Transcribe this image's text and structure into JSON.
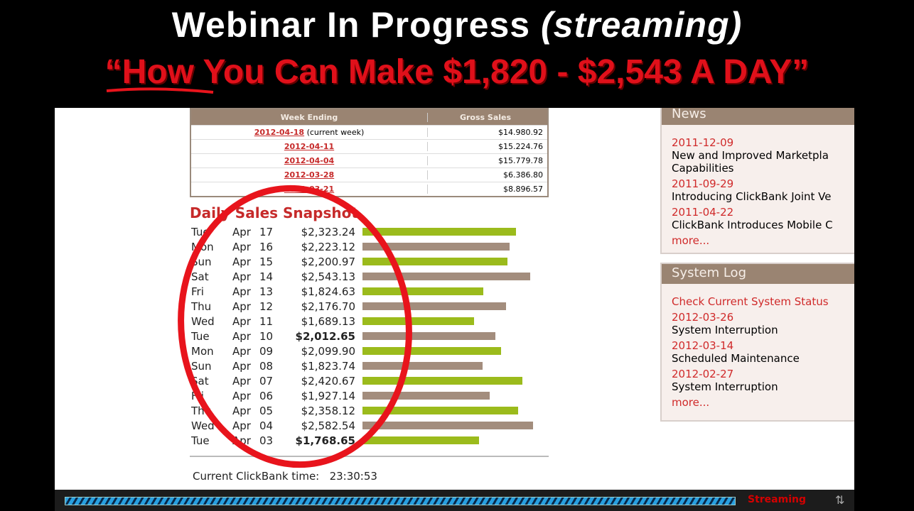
{
  "headline": {
    "line1": "Webinar In Progress",
    "line1_italic": "(streaming)",
    "line2": "“How You Can Make $1,820 - $2,543 A DAY”"
  },
  "weekly": {
    "headers": [
      "Week Ending",
      "Gross Sales"
    ],
    "rows": [
      {
        "date": "2012-04-18",
        "note": "(current week)",
        "sales": "$14.980.92"
      },
      {
        "date": "2012-04-11",
        "note": "",
        "sales": "$15.224.76"
      },
      {
        "date": "2012-04-04",
        "note": "",
        "sales": "$15.779.78"
      },
      {
        "date": "2012-03-28",
        "note": "",
        "sales": "$6.386.80"
      },
      {
        "date": "2012-03-21",
        "note": "",
        "sales": "$8.896.57"
      }
    ]
  },
  "daily": {
    "title": "Daily Sales Snapshot",
    "colors": {
      "even": "#9bbb1c",
      "odd": "#a38d7d"
    },
    "rows": [
      {
        "day": "Tue",
        "mon": "Apr",
        "d": "17",
        "amt": "$2,323.24",
        "v": 2323.24
      },
      {
        "day": "Mon",
        "mon": "Apr",
        "d": "16",
        "amt": "$2,223.12",
        "v": 2223.12
      },
      {
        "day": "Sun",
        "mon": "Apr",
        "d": "15",
        "amt": "$2,200.97",
        "v": 2200.97
      },
      {
        "day": "Sat",
        "mon": "Apr",
        "d": "14",
        "amt": "$2,543.13",
        "v": 2543.13
      },
      {
        "day": "Fri",
        "mon": "Apr",
        "d": "13",
        "amt": "$1,824.63",
        "v": 1824.63
      },
      {
        "day": "Thu",
        "mon": "Apr",
        "d": "12",
        "amt": "$2,176.70",
        "v": 2176.7
      },
      {
        "day": "Wed",
        "mon": "Apr",
        "d": "11",
        "amt": "$1,689.13",
        "v": 1689.13
      },
      {
        "day": "Tue",
        "mon": "Apr",
        "d": "10",
        "amt": "$2,012.65",
        "v": 2012.65,
        "bold": true
      },
      {
        "day": "Mon",
        "mon": "Apr",
        "d": "09",
        "amt": "$2,099.90",
        "v": 2099.9
      },
      {
        "day": "Sun",
        "mon": "Apr",
        "d": "08",
        "amt": "$1,823.74",
        "v": 1823.74
      },
      {
        "day": "Sat",
        "mon": "Apr",
        "d": "07",
        "amt": "$2,420.67",
        "v": 2420.67
      },
      {
        "day": "Fri",
        "mon": "Apr",
        "d": "06",
        "amt": "$1,927.14",
        "v": 1927.14
      },
      {
        "day": "Thu",
        "mon": "Apr",
        "d": "05",
        "amt": "$2,358.12",
        "v": 2358.12
      },
      {
        "day": "Wed",
        "mon": "Apr",
        "d": "04",
        "amt": "$2,582.54",
        "v": 2582.54
      },
      {
        "day": "Tue",
        "mon": "Apr",
        "d": "03",
        "amt": "$1,768.65",
        "v": 1768.65,
        "bold": true
      }
    ]
  },
  "clock": {
    "label": "Current ClickBank time:",
    "value": "23:30:53"
  },
  "news": {
    "title": "News",
    "items": [
      {
        "date": "2011-12-09",
        "text": "New and Improved Marketpla",
        "text2": "Capabilities"
      },
      {
        "date": "2011-09-29",
        "text": "Introducing ClickBank Joint Ve"
      },
      {
        "date": "2011-04-22",
        "text": "ClickBank Introduces Mobile C"
      }
    ],
    "more": "more..."
  },
  "syslog": {
    "title": "System Log",
    "status_link": "Check Current System Status",
    "items": [
      {
        "date": "2012-03-26",
        "text": "System Interruption"
      },
      {
        "date": "2012-03-14",
        "text": "Scheduled Maintenance"
      },
      {
        "date": "2012-02-27",
        "text": "System Interruption"
      }
    ],
    "more": "more..."
  },
  "player": {
    "status": "Streaming",
    "progress": 1.0
  }
}
